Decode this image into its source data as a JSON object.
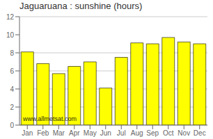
{
  "chart_data": {
    "type": "bar",
    "title": "Jaguaruana : sunshine (hours)",
    "categories": [
      "Jan",
      "Feb",
      "Mar",
      "Apr",
      "May",
      "Jun",
      "Jul",
      "Aug",
      "Sep",
      "Oct",
      "Nov",
      "Dec"
    ],
    "values": [
      8.1,
      6.8,
      5.7,
      6.5,
      7.0,
      4.1,
      7.5,
      9.1,
      9.0,
      9.7,
      9.2,
      9.0
    ],
    "color": "#ffff00",
    "ylim": [
      0,
      12
    ],
    "yticks": [
      0,
      2,
      4,
      6,
      8,
      10,
      12
    ],
    "grid": true,
    "annotation": "www.allmetsat.com"
  }
}
